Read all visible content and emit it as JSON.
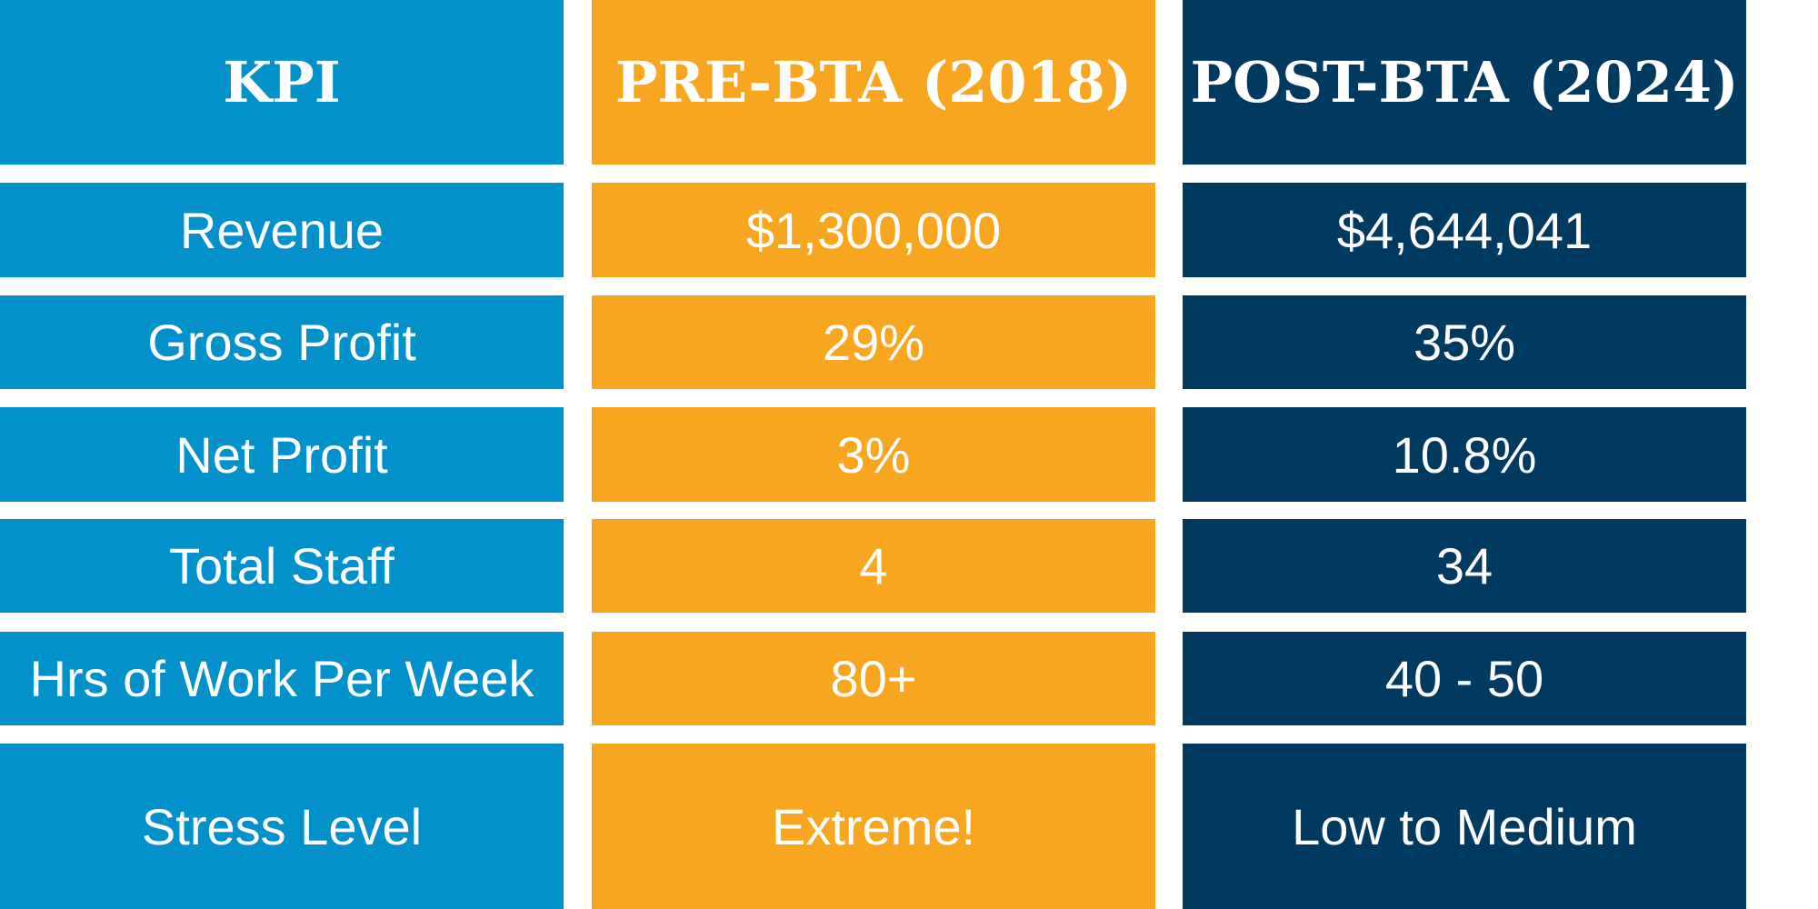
{
  "table": {
    "headers": {
      "kpi": "KPI",
      "pre": "PRE-BTA (2018)",
      "post": "POST-BTA (2024)"
    },
    "rows": [
      {
        "kpi": "Revenue",
        "pre": "$1,300,000",
        "post": "$4,644,041"
      },
      {
        "kpi": "Gross Profit",
        "pre": "29%",
        "post": "35%"
      },
      {
        "kpi": "Net Profit",
        "pre": "3%",
        "post": "10.8%"
      },
      {
        "kpi": "Total Staff",
        "pre": "4",
        "post": "34"
      },
      {
        "kpi": "Hrs of Work Per Week",
        "pre": "80+",
        "post": "40 - 50"
      },
      {
        "kpi": "Stress Level",
        "pre": "Extreme!",
        "post": "Low to Medium"
      }
    ]
  },
  "colors": {
    "kpi_column": "#0391cb",
    "pre_column": "#f8a51f",
    "post_column": "#013a61",
    "text": "#ffffff"
  }
}
